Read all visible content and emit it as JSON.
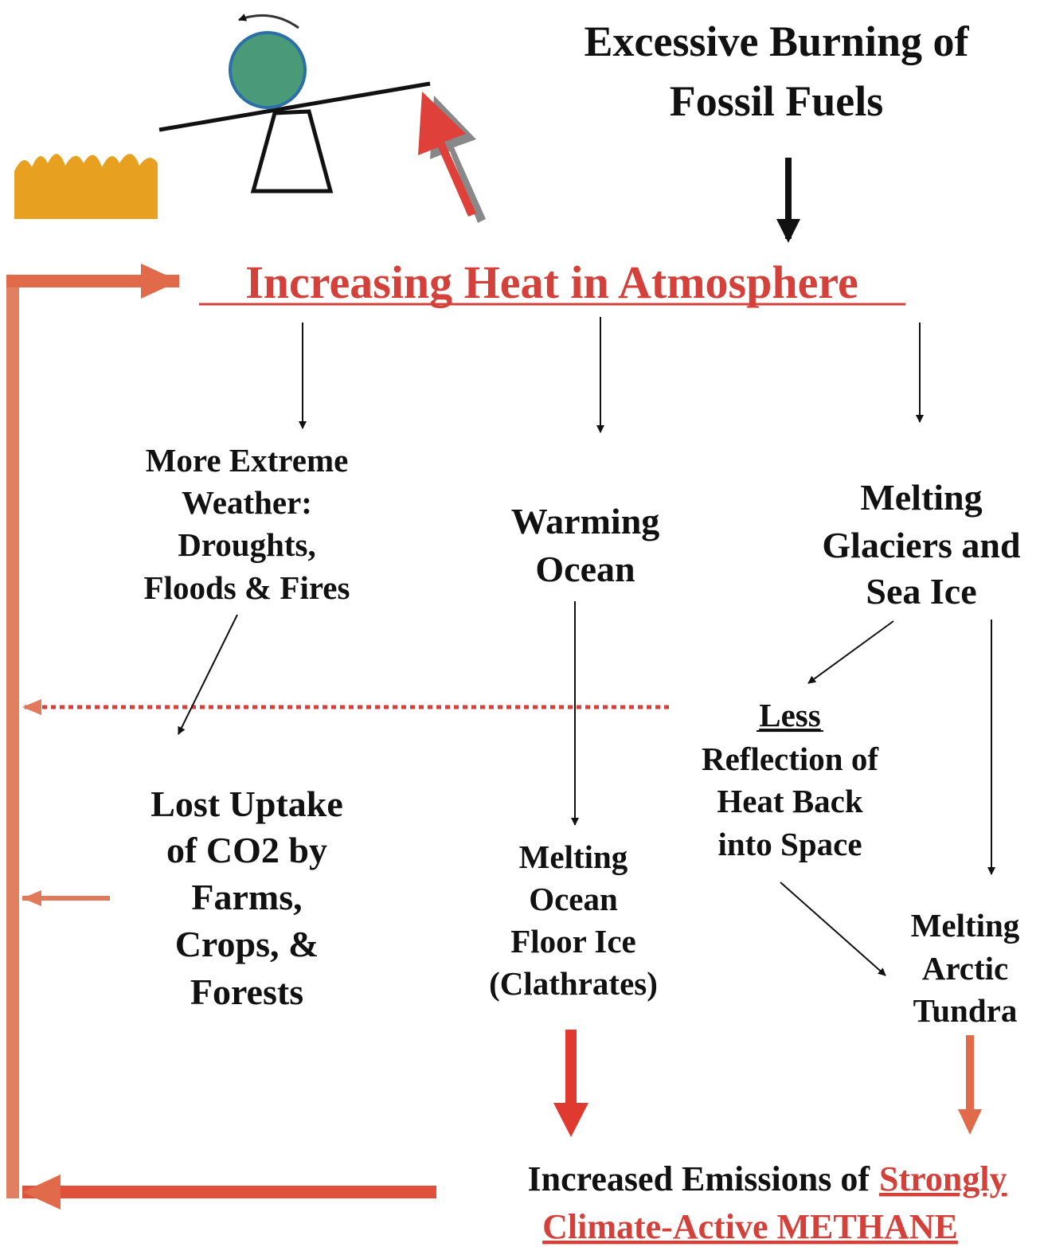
{
  "header": {
    "lines": [
      "Excessive Burning of",
      "Fossil Fuels"
    ]
  },
  "heat": {
    "label": "Increasing Heat in Atmosphere"
  },
  "nodes": [
    {
      "lines": [
        "More Extreme",
        "Weather:",
        "Droughts,",
        "Floods & Fires"
      ]
    },
    {
      "lines": [
        "Warming",
        "Ocean"
      ]
    },
    {
      "lines": [
        "Melting",
        "Glaciers and",
        "Sea Ice"
      ]
    },
    {
      "lines": [
        "Less",
        "Reflection of",
        "Heat Back",
        "into Space"
      ]
    },
    {
      "lines": [
        "Lost Uptake",
        "of CO2 by",
        "Farms,",
        "Crops, &",
        "Forests"
      ]
    },
    {
      "lines": [
        "Melting",
        "Ocean",
        "Floor Ice",
        "(Clathrates)"
      ]
    },
    {
      "lines": [
        "Melting",
        "Arctic",
        "Tundra"
      ]
    }
  ],
  "footer": {
    "plain": "Increased Emissions of",
    "highlight": [
      "Strongly",
      "Climate-Active METHANE"
    ]
  }
}
